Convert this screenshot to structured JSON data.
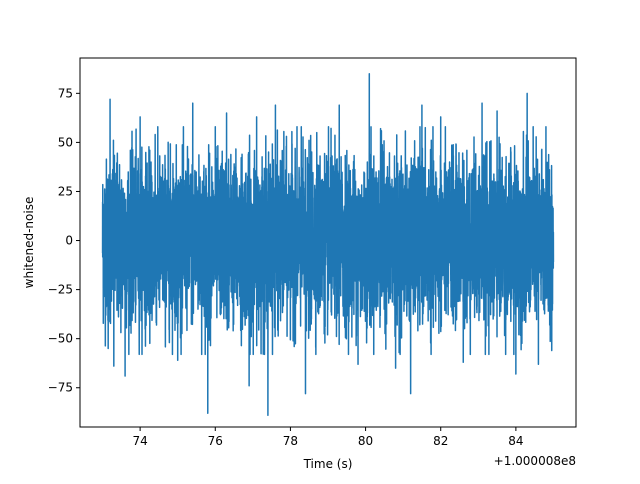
{
  "chart_data": {
    "type": "line",
    "title": "",
    "xlabel": "Time (s)",
    "ylabel": "whitened-noise",
    "x_offset_label": "+1.000008e8",
    "xlim": [
      72.4,
      85.6
    ],
    "ylim": [
      -95,
      93
    ],
    "x_ticks": [
      74,
      76,
      78,
      80,
      82,
      84
    ],
    "y_ticks": [
      -75,
      -50,
      -25,
      0,
      25,
      50,
      75
    ],
    "grid": false,
    "legend": "none",
    "series": [
      {
        "color": "#1f77b4",
        "x_start": 73.0,
        "x_end": 85.0,
        "typical_range": [
          -45,
          45
        ],
        "peaks": [
          {
            "x": 73.2,
            "y": 72
          },
          {
            "x": 73.15,
            "y": -55
          },
          {
            "x": 73.3,
            "y": -64
          },
          {
            "x": 73.6,
            "y": -69
          },
          {
            "x": 74.0,
            "y": 63
          },
          {
            "x": 74.4,
            "y": 54
          },
          {
            "x": 75.0,
            "y": -61
          },
          {
            "x": 75.4,
            "y": 70
          },
          {
            "x": 75.8,
            "y": -88
          },
          {
            "x": 76.0,
            "y": 58
          },
          {
            "x": 76.3,
            "y": 65
          },
          {
            "x": 76.9,
            "y": -74
          },
          {
            "x": 77.1,
            "y": 63
          },
          {
            "x": 77.4,
            "y": -89
          },
          {
            "x": 77.6,
            "y": 69
          },
          {
            "x": 78.4,
            "y": -78
          },
          {
            "x": 78.7,
            "y": 55
          },
          {
            "x": 79.3,
            "y": 69
          },
          {
            "x": 79.8,
            "y": -63
          },
          {
            "x": 80.1,
            "y": 85
          },
          {
            "x": 80.4,
            "y": 57
          },
          {
            "x": 80.8,
            "y": -65
          },
          {
            "x": 81.2,
            "y": -78
          },
          {
            "x": 81.5,
            "y": 69
          },
          {
            "x": 82.0,
            "y": 63
          },
          {
            "x": 82.6,
            "y": -62
          },
          {
            "x": 83.1,
            "y": 70
          },
          {
            "x": 83.5,
            "y": 66
          },
          {
            "x": 84.0,
            "y": -68
          },
          {
            "x": 84.3,
            "y": 75
          },
          {
            "x": 84.6,
            "y": -63
          },
          {
            "x": 84.8,
            "y": 58
          }
        ]
      }
    ]
  },
  "colors": {
    "line": "#1f77b4",
    "axes": "#000000",
    "background": "#ffffff"
  }
}
